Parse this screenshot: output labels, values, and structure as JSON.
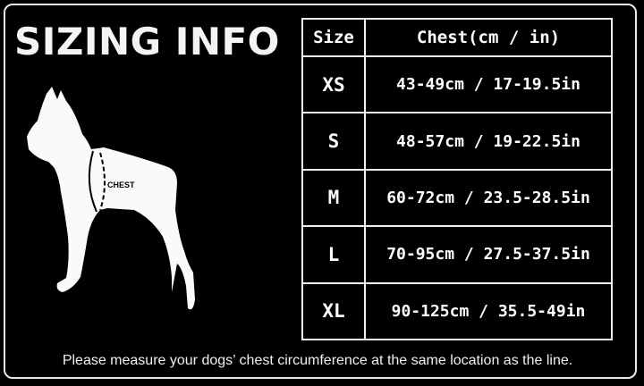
{
  "title": "SIZING INFO",
  "diagram": {
    "chest_label": "CHEST"
  },
  "table": {
    "headers": [
      "Size",
      "Chest(cm / in)"
    ],
    "rows": [
      {
        "size": "XS",
        "chest": "43-49cm / 17-19.5in"
      },
      {
        "size": "S",
        "chest": "48-57cm / 19-22.5in"
      },
      {
        "size": "M",
        "chest": "60-72cm / 23.5-28.5in"
      },
      {
        "size": "L",
        "chest": "70-95cm / 27.5-37.5in"
      },
      {
        "size": "XL",
        "chest": "90-125cm / 35.5-49in"
      }
    ]
  },
  "note": "Please measure your dogs’  chest circumference at the same location as the line.",
  "colors": {
    "background": "#000000",
    "foreground": "#ffffff"
  }
}
